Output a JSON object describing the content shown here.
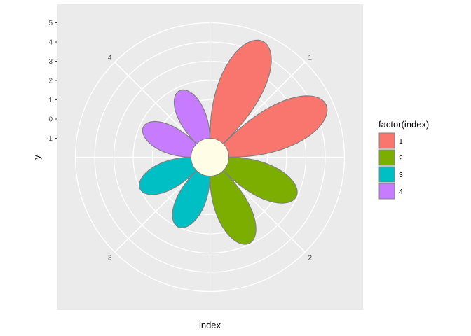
{
  "chart_data": {
    "type": "polar-petal",
    "xlabel": "index",
    "ylabel": "y",
    "y_ticks": [
      "5",
      "4",
      "3",
      "2",
      "1",
      "0",
      "-1"
    ],
    "y_tick_values": [
      5,
      4,
      3,
      2,
      1,
      0,
      -1
    ],
    "ylim": [
      -1,
      5
    ],
    "angle_labels": [
      "1",
      "2",
      "3",
      "4"
    ],
    "legend": {
      "title": "factor(index)",
      "placement": "right",
      "items": [
        {
          "label": "1",
          "color": "#F8766D"
        },
        {
          "label": "2",
          "color": "#7CAE00"
        },
        {
          "label": "3",
          "color": "#00BFC4"
        },
        {
          "label": "4",
          "color": "#C77CFF"
        }
      ]
    },
    "series": [
      {
        "index": 1,
        "color": "#F8766D",
        "max_y": 5
      },
      {
        "index": 2,
        "color": "#7CAE00",
        "max_y": 3.2
      },
      {
        "index": 3,
        "color": "#00BFC4",
        "max_y": 2.2
      },
      {
        "index": 4,
        "color": "#C77CFF",
        "max_y": 2.0
      }
    ],
    "center_color": "#FFFDE6",
    "outline_color": "#808080",
    "panel_color": "#EBEBEB",
    "grid": true
  }
}
